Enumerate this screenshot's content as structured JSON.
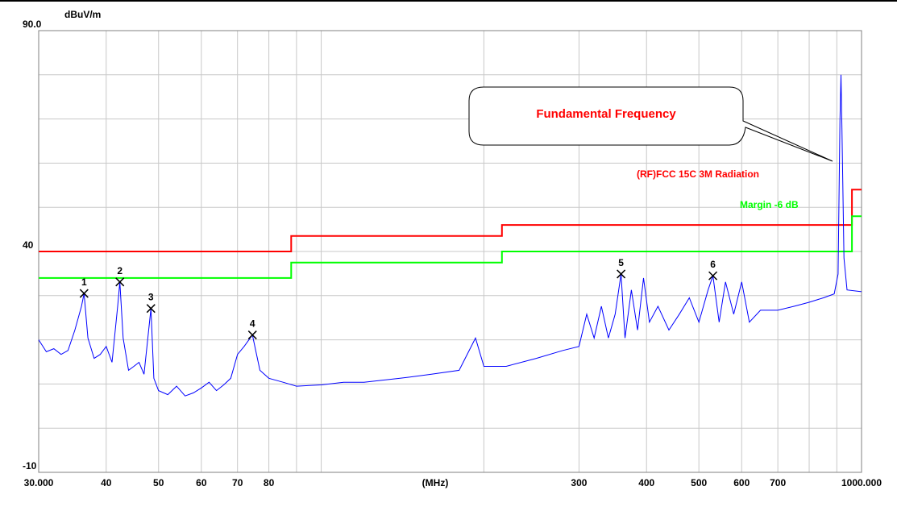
{
  "chart_data": {
    "type": "line",
    "y_label": "dBuV/m",
    "x_label": "(MHz)",
    "annotation": "Fundamental Frequency",
    "log_x": true,
    "grid": true,
    "xlim": [
      30,
      1000
    ],
    "ylim": [
      -10,
      90
    ],
    "xticks": [
      {
        "value": 30,
        "label": "30.000"
      },
      40,
      50,
      60,
      70,
      80,
      300,
      400,
      500,
      600,
      700,
      {
        "value": 1000,
        "label": "1000.000"
      }
    ],
    "xgrid": [
      90,
      100,
      200,
      800,
      900
    ],
    "yticks": [
      {
        "value": 90,
        "label": "90.0"
      },
      40,
      -10
    ],
    "ygrid": [
      80,
      70,
      60,
      50,
      30,
      20,
      10,
      0
    ],
    "series": [
      {
        "name": "(RF)FCC 15C 3M Radiation",
        "color": "#ff0000",
        "x": [
          30,
          88,
          88,
          216,
          216,
          960,
          960,
          1000
        ],
        "values": [
          40,
          40,
          43.5,
          43.5,
          46,
          46,
          54,
          54
        ]
      },
      {
        "name": "Margin -6 dB",
        "color": "#00ff00",
        "x": [
          30,
          88,
          88,
          216,
          216,
          960,
          960,
          1000
        ],
        "values": [
          34,
          34,
          37.5,
          37.5,
          40,
          40,
          48,
          48
        ]
      },
      {
        "color": "#0000ff",
        "x": [
          30,
          31,
          32,
          33,
          34,
          35,
          36,
          36.4,
          37,
          38,
          39,
          40,
          41,
          42,
          42.4,
          43,
          44,
          45,
          46,
          47,
          48.4,
          49,
          50,
          52,
          54,
          56,
          58,
          60,
          62,
          64,
          66,
          68,
          70,
          72,
          74.6,
          77,
          80,
          85,
          90,
          100,
          110,
          120,
          140,
          160,
          180,
          193,
          200,
          220,
          250,
          280,
          300,
          310,
          320,
          330,
          340,
          350,
          358.9,
          365,
          375,
          385,
          395,
          405,
          420,
          440,
          460,
          480,
          500,
          520,
          530.8,
          545,
          560,
          580,
          600,
          620,
          650,
          700,
          750,
          800,
          850,
          890,
          905,
          912,
          916,
          920,
          928,
          940,
          1000
        ],
        "values": [
          20.0,
          17.3,
          18.0,
          16.7,
          17.6,
          22.2,
          27.6,
          30.5,
          20.4,
          15.8,
          16.7,
          18.5,
          14.9,
          27.6,
          33.1,
          20.4,
          13.1,
          14.0,
          14.9,
          12.2,
          27.1,
          11.3,
          8.5,
          7.6,
          9.5,
          7.3,
          8.0,
          9.1,
          10.4,
          8.5,
          9.8,
          11.3,
          16.7,
          18.5,
          21.1,
          13.1,
          11.3,
          10.4,
          9.5,
          9.8,
          10.4,
          10.4,
          11.3,
          12.2,
          13.1,
          20.4,
          14.0,
          14.0,
          15.8,
          17.6,
          18.5,
          25.8,
          20.4,
          27.6,
          20.4,
          25.8,
          34.9,
          20.4,
          31.3,
          22.2,
          34.0,
          24.0,
          27.6,
          22.2,
          25.8,
          29.5,
          24.0,
          31.3,
          34.5,
          24.0,
          33.1,
          25.8,
          33.1,
          24.0,
          26.7,
          26.7,
          27.6,
          28.5,
          29.5,
          30.4,
          34.9,
          69.5,
          80.0,
          67.6,
          38.5,
          31.3,
          30.9
        ]
      }
    ],
    "markers": [
      {
        "label": "1",
        "x": 36.4,
        "y": 30.5
      },
      {
        "label": "2",
        "x": 42.4,
        "y": 33.1
      },
      {
        "label": "3",
        "x": 48.4,
        "y": 27.1
      },
      {
        "label": "4",
        "x": 74.6,
        "y": 21.1
      },
      {
        "label": "5",
        "x": 358.9,
        "y": 34.9
      },
      {
        "label": "6",
        "x": 530.8,
        "y": 34.5
      }
    ]
  }
}
